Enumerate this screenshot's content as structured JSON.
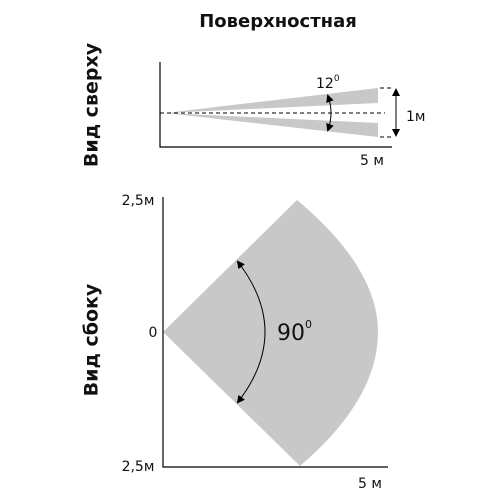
{
  "title": "Поверхностная",
  "top_view": {
    "label": "Вид сверху",
    "angle": "12",
    "angle_unit": "0",
    "width": "1м",
    "distance": "5 м"
  },
  "side_view": {
    "label": "Вид сбоку",
    "top": "2,5м",
    "origin": "0",
    "bottom": "2,5м",
    "angle": "90",
    "angle_unit": "0",
    "distance": "5 м"
  }
}
